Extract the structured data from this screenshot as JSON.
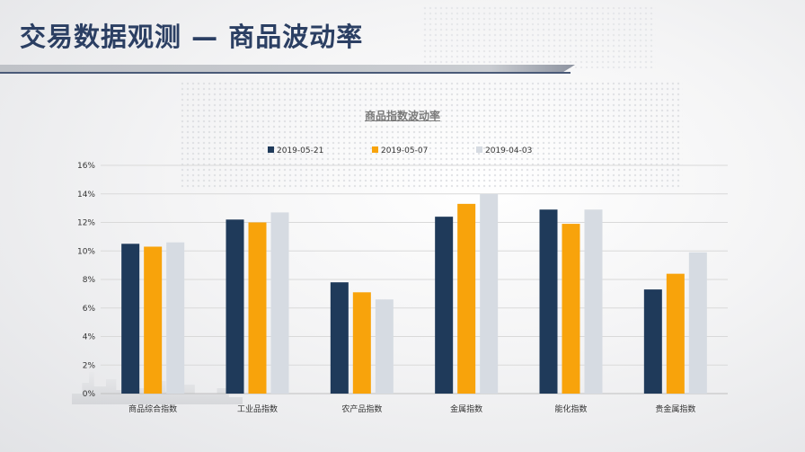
{
  "slide": {
    "title": "交易数据观测 — 商品波动率"
  },
  "colors": {
    "title": "#2b3f63",
    "series": [
      "#1f3a5a",
      "#f8a30b",
      "#d6dbe2"
    ],
    "grid": "#d9d9d9"
  },
  "chart_data": {
    "type": "bar",
    "title": "商品指数波动率",
    "xlabel": "",
    "ylabel": "",
    "categories": [
      "商品综合指数",
      "工业品指数",
      "农产品指数",
      "金属指数",
      "能化指数",
      "贵金属指数"
    ],
    "series": [
      {
        "name": "2019-05-21",
        "values": [
          10.5,
          12.2,
          7.8,
          12.4,
          12.9,
          7.3
        ]
      },
      {
        "name": "2019-05-07",
        "values": [
          10.3,
          12.0,
          7.1,
          13.3,
          11.9,
          8.4
        ]
      },
      {
        "name": "2019-04-03",
        "values": [
          10.6,
          12.7,
          6.6,
          14.0,
          12.9,
          9.9
        ]
      }
    ],
    "ylim": [
      0,
      16
    ],
    "yticks": [
      "0%",
      "2%",
      "4%",
      "6%",
      "8%",
      "10%",
      "12%",
      "14%",
      "16%"
    ],
    "grid": true,
    "legend_position": "top-center"
  }
}
